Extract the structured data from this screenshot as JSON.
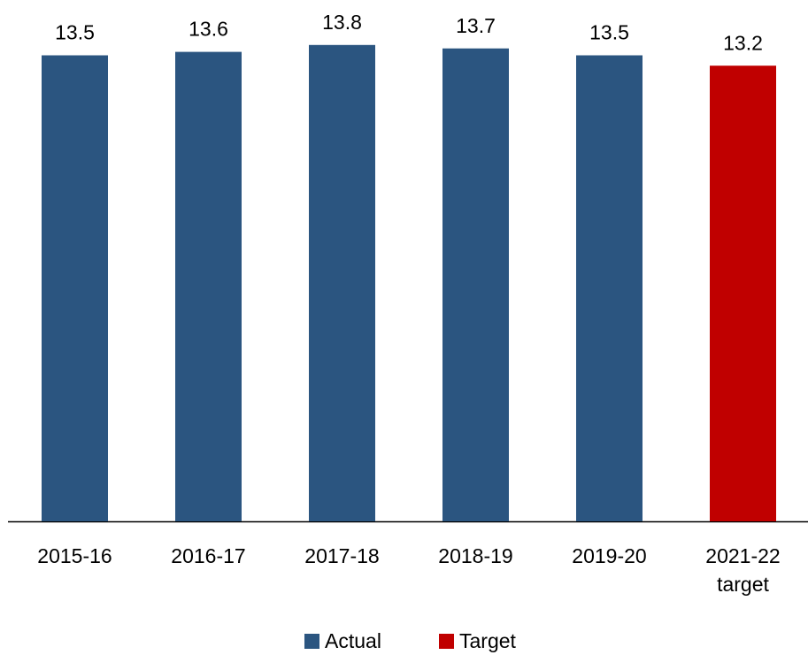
{
  "chart_data": {
    "type": "bar",
    "categories": [
      "2015-16",
      "2016-17",
      "2017-18",
      "2018-19",
      "2019-20",
      "2021-22 target"
    ],
    "series": [
      {
        "name": "Actual",
        "color": "#2b5580",
        "values": [
          13.5,
          13.6,
          13.8,
          13.7,
          13.5,
          null
        ]
      },
      {
        "name": "Target",
        "color": "#c00000",
        "values": [
          null,
          null,
          null,
          null,
          null,
          13.2
        ]
      }
    ],
    "ylim": [
      0,
      15
    ]
  }
}
